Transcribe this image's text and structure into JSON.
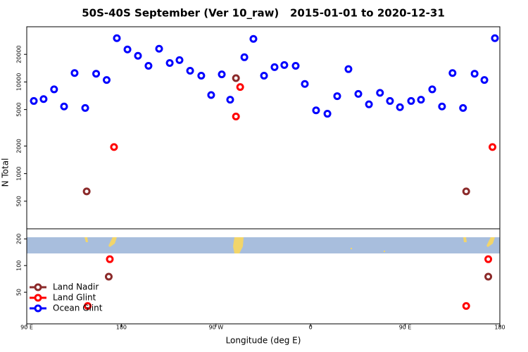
{
  "chart_data": [
    {
      "type": "scatter",
      "title": "50S-40S September (Ver 10_raw)   2015-01-01 to 2020-12-31",
      "ylabel": "N Total",
      "xlim": [
        90,
        540
      ],
      "ylim": [
        250,
        40000
      ],
      "yscale": "log",
      "yticks": [
        500,
        1000,
        2000,
        5000,
        10000,
        20000
      ],
      "series": [
        {
          "color": "#8b2a2a",
          "x": [
            147,
            289,
            508
          ],
          "values": [
            640,
            11000,
            640
          ]
        },
        {
          "color": "#ff0000",
          "x": [
            173,
            289,
            293,
            533
          ],
          "values": [
            1950,
            4200,
            8800,
            1950
          ]
        },
        {
          "color": "#0000ff",
          "x": [
            96.7,
            106,
            116,
            125.5,
            135.5,
            145.6,
            156,
            166,
            175.7,
            185.8,
            195.8,
            205.8,
            215.9,
            226,
            235.3,
            245.4,
            256,
            265.4,
            275.5,
            283.5,
            297,
            305.6,
            315.7,
            325.7,
            335,
            345.8,
            354.5,
            365.2,
            376,
            385.3,
            396,
            405.4,
            415.5,
            426,
            435.5,
            445,
            455.6,
            465,
            475.7,
            485,
            495,
            505,
            516,
            525.3,
            535.3
          ],
          "values": [
            6200,
            6500,
            8300,
            5400,
            12500,
            5200,
            12300,
            10500,
            30000,
            22600,
            19300,
            15000,
            23000,
            16100,
            17300,
            13250,
            11700,
            7200,
            12100,
            6400,
            18600,
            29500,
            11700,
            14500,
            15300,
            15000,
            9500,
            4900,
            4500,
            7000,
            13800,
            7400,
            5700,
            7600,
            6200,
            5300,
            6200,
            6400,
            8300,
            5400,
            12500,
            5200,
            12300,
            10500,
            30000
          ]
        }
      ]
    },
    {
      "type": "scatter",
      "xlabel": "Longitude (deg E)",
      "xlim": [
        90,
        540
      ],
      "ylim": [
        22,
        260
      ],
      "yscale": "log",
      "yticks": [
        50,
        100,
        200
      ],
      "xticks": [
        {
          "value": 90,
          "label": "90 E"
        },
        180,
        {
          "value": 270,
          "label": "90 W"
        },
        {
          "value": 360,
          "label": "0"
        },
        {
          "value": 450,
          "label": "90 E"
        },
        {
          "value": 540,
          "label": "180"
        }
      ],
      "legend": "lower left",
      "series": [
        {
          "name": "Land Nadir",
          "color": "#8b2a2a",
          "x": [
            168,
            529
          ],
          "values": [
            75,
            75
          ]
        },
        {
          "name": "Land Glint",
          "color": "#ff0000",
          "x": [
            148,
            169,
            508,
            529
          ],
          "values": [
            35,
            118,
            35,
            118
          ]
        },
        {
          "name": "Ocean Glint",
          "color": "#0000ff",
          "x": [],
          "values": []
        }
      ]
    }
  ]
}
